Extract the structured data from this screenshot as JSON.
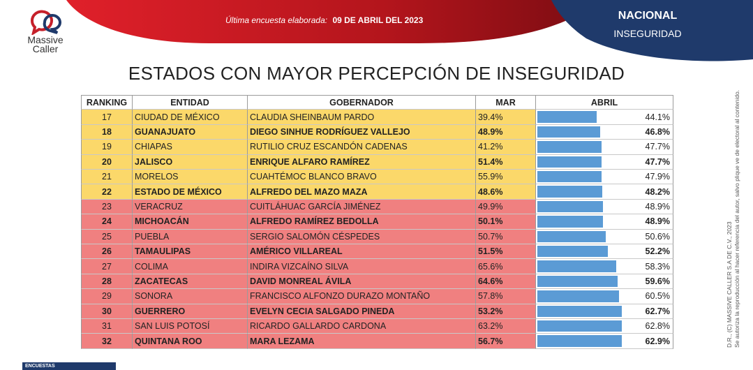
{
  "header": {
    "survey_label": "Última encuesta elaborada:",
    "survey_date": "09 DE ABRIL DEL 2023",
    "region": "NACIONAL",
    "topic": "INSEGURIDAD",
    "colors": {
      "red": "#b3151c",
      "navy": "#1f3a6b"
    }
  },
  "logo": {
    "name_line1": "Massive",
    "name_line2": "Caller"
  },
  "title": "ESTADOS CON MAYOR PERCEPCIÓN DE INSEGURIDAD",
  "side_note": {
    "line1": "D.R., (C) MASSIVE CALLER S.A DE C.V., 2023",
    "line2": "Se autoriza la reproducción al hacer referencia del autor, salvo plique ve de electoral al contenido."
  },
  "footer": {
    "badge": "ENCUESTAS"
  },
  "chart_data": {
    "type": "table",
    "title": "ESTADOS CON MAYOR PERCEPCIÓN DE INSEGURIDAD",
    "columns": [
      "RANKING",
      "ENTIDAD",
      "GOBERNADOR",
      "MAR",
      "ABRIL"
    ],
    "value_scale": [
      0,
      100
    ],
    "colors": {
      "yellow": "#fbd86a",
      "red": "#f08080",
      "bar": "#5b9bd5"
    },
    "rows": [
      {
        "rank": "17",
        "entity": "CIUDAD DE MÉXICO",
        "governor": "CLAUDIA SHEINBAUM PARDO",
        "mar": "39.4%",
        "abr": 44.1,
        "abr_label": "44.1%",
        "bold": false,
        "group": "yellow"
      },
      {
        "rank": "18",
        "entity": "GUANAJUATO",
        "governor": "DIEGO SINHUE RODRÍGUEZ VALLEJO",
        "mar": "48.9%",
        "abr": 46.8,
        "abr_label": "46.8%",
        "bold": true,
        "group": "yellow"
      },
      {
        "rank": "19",
        "entity": "CHIAPAS",
        "governor": "RUTILIO CRUZ ESCANDÓN CADENAS",
        "mar": "41.2%",
        "abr": 47.7,
        "abr_label": "47.7%",
        "bold": false,
        "group": "yellow"
      },
      {
        "rank": "20",
        "entity": "JALISCO",
        "governor": "ENRIQUE ALFARO RAMÍREZ",
        "mar": "51.4%",
        "abr": 47.7,
        "abr_label": "47.7%",
        "bold": true,
        "group": "yellow"
      },
      {
        "rank": "21",
        "entity": "MORELOS",
        "governor": "CUAHTÉMOC BLANCO BRAVO",
        "mar": "55.9%",
        "abr": 47.9,
        "abr_label": "47.9%",
        "bold": false,
        "group": "yellow"
      },
      {
        "rank": "22",
        "entity": "ESTADO DE MÉXICO",
        "governor": "ALFREDO DEL MAZO MAZA",
        "mar": "48.6%",
        "abr": 48.2,
        "abr_label": "48.2%",
        "bold": true,
        "group": "yellow"
      },
      {
        "rank": "23",
        "entity": "VERACRUZ",
        "governor": "CUITLÁHUAC GARCÍA JIMÉNEZ",
        "mar": "49.9%",
        "abr": 48.9,
        "abr_label": "48.9%",
        "bold": false,
        "group": "red"
      },
      {
        "rank": "24",
        "entity": "MICHOACÁN",
        "governor": "ALFREDO RAMÍREZ BEDOLLA",
        "mar": "50.1%",
        "abr": 48.9,
        "abr_label": "48.9%",
        "bold": true,
        "group": "red"
      },
      {
        "rank": "25",
        "entity": "PUEBLA",
        "governor": "SERGIO SALOMÓN CÉSPEDES",
        "mar": "50.7%",
        "abr": 50.6,
        "abr_label": "50.6%",
        "bold": false,
        "group": "red"
      },
      {
        "rank": "26",
        "entity": "TAMAULIPAS",
        "governor": "AMÉRICO VILLAREAL",
        "mar": "51.5%",
        "abr": 52.2,
        "abr_label": "52.2%",
        "bold": true,
        "group": "red"
      },
      {
        "rank": "27",
        "entity": "COLIMA",
        "governor": "INDIRA VIZCAÍNO SILVA",
        "mar": "65.6%",
        "abr": 58.3,
        "abr_label": "58.3%",
        "bold": false,
        "group": "red"
      },
      {
        "rank": "28",
        "entity": "ZACATECAS",
        "governor": "DAVID MONREAL ÁVILA",
        "mar": "64.6%",
        "abr": 59.6,
        "abr_label": "59.6%",
        "bold": true,
        "group": "red"
      },
      {
        "rank": "29",
        "entity": "SONORA",
        "governor": "FRANCISCO ALFONZO DURAZO MONTAÑO",
        "mar": "57.8%",
        "abr": 60.5,
        "abr_label": "60.5%",
        "bold": false,
        "group": "red"
      },
      {
        "rank": "30",
        "entity": "GUERRERO",
        "governor": "EVELYN CECIA SALGADO PINEDA",
        "mar": "53.2%",
        "abr": 62.7,
        "abr_label": "62.7%",
        "bold": true,
        "group": "red"
      },
      {
        "rank": "31",
        "entity": "SAN LUIS POTOSÍ",
        "governor": "RICARDO GALLARDO CARDONA",
        "mar": "63.2%",
        "abr": 62.8,
        "abr_label": "62.8%",
        "bold": false,
        "group": "red"
      },
      {
        "rank": "32",
        "entity": "QUINTANA ROO",
        "governor": "MARA LEZAMA",
        "mar": "56.7%",
        "abr": 62.9,
        "abr_label": "62.9%",
        "bold": true,
        "group": "red"
      }
    ]
  }
}
